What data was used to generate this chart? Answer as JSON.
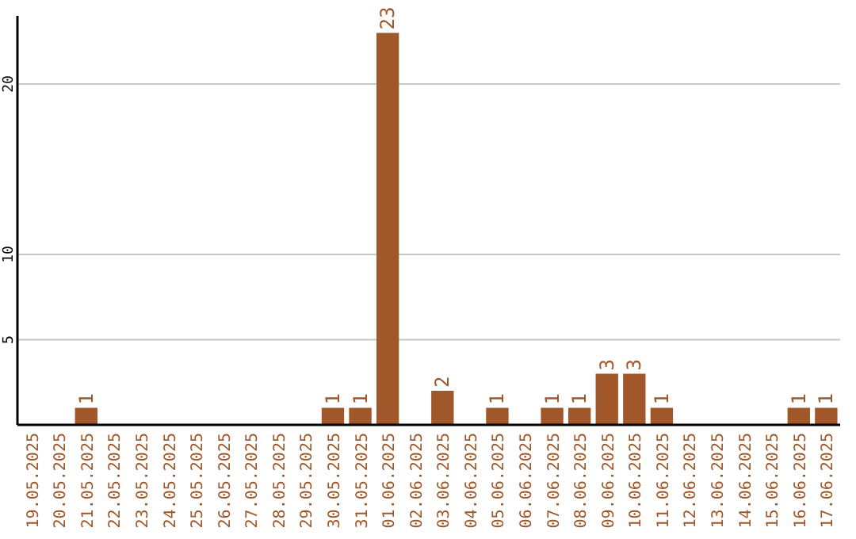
{
  "chart_data": {
    "type": "bar",
    "categories": [
      "19.05.2025",
      "20.05.2025",
      "21.05.2025",
      "22.05.2025",
      "23.05.2025",
      "24.05.2025",
      "25.05.2025",
      "26.05.2025",
      "27.05.2025",
      "28.05.2025",
      "29.05.2025",
      "30.05.2025",
      "31.05.2025",
      "01.06.2025",
      "02.06.2025",
      "03.06.2025",
      "04.06.2025",
      "05.06.2025",
      "06.06.2025",
      "07.06.2025",
      "08.06.2025",
      "09.06.2025",
      "10.06.2025",
      "11.06.2025",
      "12.06.2025",
      "13.06.2025",
      "14.06.2025",
      "15.06.2025",
      "16.06.2025",
      "17.06.2025"
    ],
    "values": [
      0,
      0,
      1,
      0,
      0,
      0,
      0,
      0,
      0,
      0,
      0,
      1,
      1,
      23,
      0,
      2,
      0,
      1,
      0,
      1,
      1,
      3,
      3,
      1,
      0,
      0,
      0,
      0,
      1,
      1
    ],
    "value_labels": [
      null,
      null,
      "1",
      null,
      null,
      null,
      null,
      null,
      null,
      null,
      null,
      "1",
      "1",
      "23",
      null,
      "2",
      null,
      "1",
      null,
      "1",
      "1",
      "3",
      "3",
      "1",
      null,
      null,
      null,
      null,
      "1",
      "1"
    ],
    "color": "#a0572a",
    "ylim": [
      0,
      24
    ],
    "yticks": [
      5,
      10,
      20
    ],
    "grid": "y"
  }
}
